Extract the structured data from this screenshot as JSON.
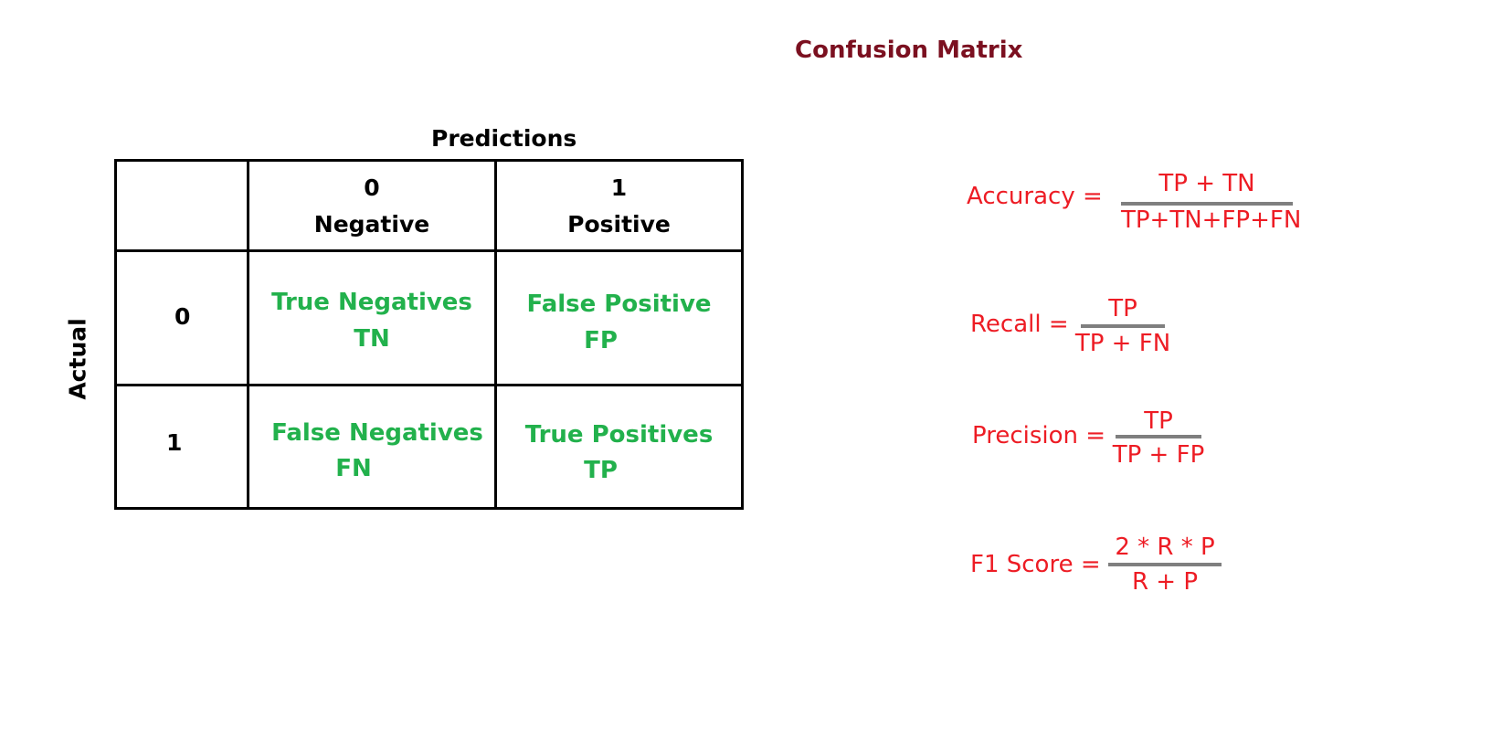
{
  "title": "Confusion Matrix",
  "matrix": {
    "predictions_label": "Predictions",
    "actual_label": "Actual",
    "columns": [
      {
        "value": "0",
        "label": "Negative"
      },
      {
        "value": "1",
        "label": "Positive"
      }
    ],
    "rows": [
      "0",
      "1"
    ],
    "cells": {
      "tn": {
        "line1": "True Negatives",
        "line2": "TN"
      },
      "fp": {
        "line1": "False Positive",
        "line2": "FP"
      },
      "fn": {
        "line1": "False Negatives",
        "line2": "FN"
      },
      "tp": {
        "line1": "True Positives",
        "line2": "TP"
      }
    }
  },
  "formulas": {
    "accuracy": {
      "label": "Accuracy =",
      "numerator": "TP + TN",
      "denominator": "TP+TN+FP+FN"
    },
    "recall": {
      "label": "Recall =",
      "numerator": "TP",
      "denominator": "TP + FN"
    },
    "precision": {
      "label": "Precision =",
      "numerator": "TP",
      "denominator": "TP + FP"
    },
    "f1": {
      "label": "F1 Score =",
      "numerator": "2 * R * P",
      "denominator": "R + P"
    }
  },
  "colors": {
    "title": "#7b1020",
    "cell_text": "#22b14c",
    "formula_text": "#ed1c24",
    "fraction_bar": "#7f7f7f"
  }
}
